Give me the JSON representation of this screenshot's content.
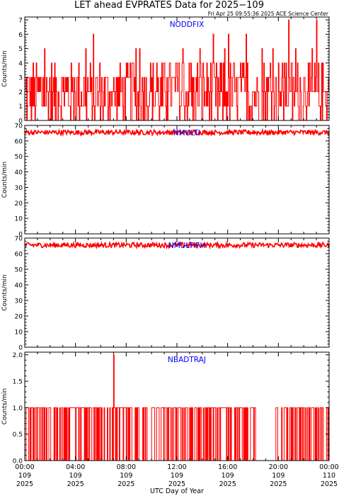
{
  "title": "LET ahead EVPRATES Data for 2025−109",
  "timestamp": "Fri Apr 25 09:55:36 2025 ACE Science Center",
  "xlabel": "UTC Day of Year",
  "colors": {
    "data": "#ff0000",
    "panel_label": "#0000ff",
    "axis": "#000000"
  },
  "chart_data": [
    {
      "type": "line",
      "series": [
        {
          "name": "NODDFIX",
          "pattern": "noisy",
          "base": 1.8,
          "spread": 2.2,
          "max": 7,
          "spikes": [
            [
              20.8,
              7
            ],
            [
              23.0,
              7
            ]
          ]
        }
      ],
      "ylabel": "Counts/min",
      "ylim": [
        0,
        7.2
      ],
      "yticks": [
        0,
        1,
        2,
        3,
        4,
        5,
        6,
        7
      ],
      "yticklabels": [
        "0",
        "1",
        "2",
        "3",
        "4",
        "5",
        "6",
        "7"
      ]
    },
    {
      "type": "line",
      "series": [
        {
          "name": "NMULTI",
          "pattern": "band",
          "base": 65.5,
          "spread": 3.2
        }
      ],
      "ylabel": "Counts/min",
      "ylim": [
        0,
        70
      ],
      "yticks": [
        0,
        10,
        20,
        30,
        40,
        50,
        60,
        70
      ],
      "yticklabels": [
        "0",
        "10",
        "20",
        "30",
        "40",
        "50",
        "60",
        "70"
      ]
    },
    {
      "type": "line",
      "series": [
        {
          "name": "NMULTIFH",
          "pattern": "band",
          "base": 65.5,
          "spread": 3.2
        }
      ],
      "ylabel": "Counts/min",
      "ylim": [
        0,
        70
      ],
      "yticks": [
        0,
        10,
        20,
        30,
        40,
        50,
        60,
        70
      ],
      "yticklabels": [
        "0",
        "10",
        "20",
        "30",
        "40",
        "50",
        "60",
        "70"
      ]
    },
    {
      "type": "line",
      "series": [
        {
          "name": "NBADTRAJ",
          "pattern": "binary",
          "gap": [
            18.3,
            19.6
          ],
          "spikes": [
            [
              7.0,
              2
            ]
          ]
        }
      ],
      "ylabel": "Counts/min",
      "ylim": [
        0,
        2.05
      ],
      "yticks": [
        0,
        0.5,
        1,
        1.5,
        2
      ],
      "yticklabels": [
        "0.0",
        "0.5",
        "1.0",
        "1.5",
        "2.0"
      ]
    }
  ],
  "xaxis": {
    "xlim": [
      0,
      24
    ],
    "ticks": [
      0,
      4,
      8,
      12,
      16,
      20,
      24
    ],
    "labels": [
      [
        "00:00",
        "109",
        "2025"
      ],
      [
        "04:00",
        "109",
        "2025"
      ],
      [
        "08:00",
        "109",
        "2025"
      ],
      [
        "12:00",
        "109",
        "2025"
      ],
      [
        "16:00",
        "109",
        "2025"
      ],
      [
        "20:00",
        "109",
        "2025"
      ],
      [
        "00:00",
        "110",
        "2025"
      ]
    ]
  }
}
